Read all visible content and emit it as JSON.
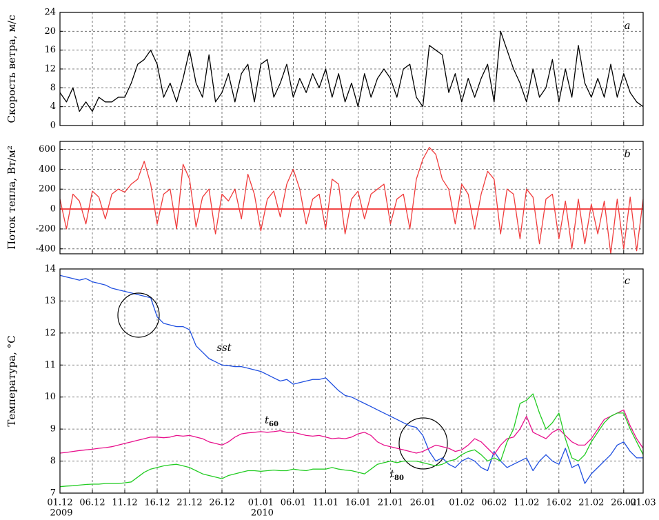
{
  "chart_data": [
    {
      "type": "line",
      "ylabel": "Скорость ветра, м/с",
      "annotation": "a",
      "grid": true,
      "xlim": [
        0,
        90
      ],
      "ylim": [
        0,
        24
      ],
      "yticks": [
        0,
        4,
        8,
        12,
        16,
        20,
        24
      ],
      "x": [
        0,
        1,
        2,
        3,
        4,
        5,
        6,
        7,
        8,
        9,
        10,
        11,
        12,
        13,
        14,
        15,
        16,
        17,
        18,
        19,
        20,
        21,
        22,
        23,
        24,
        25,
        26,
        27,
        28,
        29,
        30,
        31,
        32,
        33,
        34,
        35,
        36,
        37,
        38,
        39,
        40,
        41,
        42,
        43,
        44,
        45,
        46,
        47,
        48,
        49,
        50,
        51,
        52,
        53,
        54,
        55,
        56,
        57,
        58,
        59,
        60,
        61,
        62,
        63,
        64,
        65,
        66,
        67,
        68,
        69,
        70,
        71,
        72,
        73,
        74,
        75,
        76,
        77,
        78,
        79,
        80,
        81,
        82,
        83,
        84,
        85,
        86,
        87,
        88,
        89,
        90
      ],
      "series": [
        {
          "color": "#000000",
          "values": [
            7,
            5,
            8,
            3,
            5,
            3,
            6,
            5,
            5,
            6,
            6,
            9,
            13,
            14,
            16,
            13,
            6,
            9,
            5,
            10,
            16,
            9,
            6,
            15,
            5,
            7,
            11,
            5,
            11,
            13,
            5,
            13,
            14,
            6,
            9,
            13,
            6,
            10,
            7,
            11,
            8,
            12,
            6,
            11,
            5,
            9,
            4,
            11,
            6,
            10,
            12,
            10,
            6,
            12,
            13,
            6,
            4,
            17,
            16,
            15,
            7,
            11,
            5,
            10,
            6,
            10,
            13,
            5,
            20,
            16,
            12,
            9,
            5,
            12,
            6,
            8,
            14,
            5,
            12,
            6,
            17,
            9,
            6,
            10,
            6,
            13,
            6,
            11,
            7,
            5,
            4
          ]
        }
      ]
    },
    {
      "type": "line",
      "ylabel": "Поток тепла, Вт/м²",
      "annotation": "b",
      "grid": true,
      "tick_label_color": "#e8222a",
      "reference_line": 0,
      "xlim": [
        0,
        90
      ],
      "ylim": [
        -450,
        680
      ],
      "yticks": [
        -400,
        -200,
        0,
        200,
        400,
        600
      ],
      "x": [
        0,
        1,
        2,
        3,
        4,
        5,
        6,
        7,
        8,
        9,
        10,
        11,
        12,
        13,
        14,
        15,
        16,
        17,
        18,
        19,
        20,
        21,
        22,
        23,
        24,
        25,
        26,
        27,
        28,
        29,
        30,
        31,
        32,
        33,
        34,
        35,
        36,
        37,
        38,
        39,
        40,
        41,
        42,
        43,
        44,
        45,
        46,
        47,
        48,
        49,
        50,
        51,
        52,
        53,
        54,
        55,
        56,
        57,
        58,
        59,
        60,
        61,
        62,
        63,
        64,
        65,
        66,
        67,
        68,
        69,
        70,
        71,
        72,
        73,
        74,
        75,
        76,
        77,
        78,
        79,
        80,
        81,
        82,
        83,
        84,
        85,
        86,
        87,
        88,
        89,
        90
      ],
      "series": [
        {
          "color": "#f03c3c",
          "values": [
            100,
            -200,
            150,
            80,
            -150,
            180,
            120,
            -100,
            150,
            200,
            170,
            250,
            300,
            480,
            250,
            -150,
            150,
            200,
            -200,
            450,
            300,
            -180,
            120,
            200,
            -250,
            150,
            80,
            200,
            -100,
            350,
            150,
            -220,
            100,
            180,
            -80,
            250,
            400,
            200,
            -150,
            100,
            150,
            -200,
            300,
            250,
            -250,
            100,
            180,
            -100,
            150,
            200,
            250,
            -150,
            100,
            150,
            -200,
            300,
            500,
            620,
            550,
            300,
            200,
            -150,
            250,
            150,
            -200,
            150,
            380,
            300,
            -250,
            200,
            150,
            -300,
            200,
            120,
            -350,
            100,
            150,
            -300,
            80,
            -400,
            100,
            -350,
            50,
            -250,
            80,
            -450,
            100,
            -400,
            120,
            -420,
            100
          ]
        }
      ]
    },
    {
      "type": "line",
      "ylabel": "Температура, °С",
      "annotation": "c",
      "grid": true,
      "xlim": [
        0,
        90
      ],
      "ylim": [
        7,
        14
      ],
      "yticks": [
        7,
        8,
        9,
        10,
        11,
        12,
        13,
        14
      ],
      "xticks": [
        {
          "value": 0,
          "label": "01.12"
        },
        {
          "value": 5,
          "label": "06.12"
        },
        {
          "value": 10,
          "label": "11.12"
        },
        {
          "value": 15,
          "label": "16.12"
        },
        {
          "value": 20,
          "label": "21.12"
        },
        {
          "value": 25,
          "label": "26.12"
        },
        {
          "value": 31,
          "label": "01.01"
        },
        {
          "value": 36,
          "label": "06.01"
        },
        {
          "value": 41,
          "label": "11.01"
        },
        {
          "value": 46,
          "label": "16.01"
        },
        {
          "value": 51,
          "label": "21.01"
        },
        {
          "value": 56,
          "label": "26.01"
        },
        {
          "value": 62,
          "label": "01.02"
        },
        {
          "value": 67,
          "label": "06.02"
        },
        {
          "value": 72,
          "label": "11.02"
        },
        {
          "value": 77,
          "label": "16.02"
        },
        {
          "value": 82,
          "label": "21.02"
        },
        {
          "value": 87,
          "label": "26.02"
        },
        {
          "value": 90,
          "label": "01.03"
        }
      ],
      "x_year_labels": [
        {
          "value": 0,
          "label": "2009"
        },
        {
          "value": 31,
          "label": "2010"
        }
      ],
      "x": [
        0,
        1,
        2,
        3,
        4,
        5,
        6,
        7,
        8,
        9,
        10,
        11,
        12,
        13,
        14,
        15,
        16,
        17,
        18,
        19,
        20,
        21,
        22,
        23,
        24,
        25,
        26,
        27,
        28,
        29,
        30,
        31,
        32,
        33,
        34,
        35,
        36,
        37,
        38,
        39,
        40,
        41,
        42,
        43,
        44,
        45,
        46,
        47,
        48,
        49,
        50,
        51,
        52,
        53,
        54,
        55,
        56,
        57,
        58,
        59,
        60,
        61,
        62,
        63,
        64,
        65,
        66,
        67,
        68,
        69,
        70,
        71,
        72,
        73,
        74,
        75,
        76,
        77,
        78,
        79,
        80,
        81,
        82,
        83,
        84,
        85,
        86,
        87,
        88,
        89,
        90
      ],
      "series": [
        {
          "name": "sst",
          "color": "#1f4fe0",
          "values": [
            13.8,
            13.75,
            13.7,
            13.65,
            13.7,
            13.6,
            13.55,
            13.5,
            13.4,
            13.35,
            13.3,
            13.25,
            13.2,
            13.15,
            13.1,
            12.5,
            12.3,
            12.25,
            12.2,
            12.2,
            12.1,
            11.6,
            11.4,
            11.2,
            11.1,
            11.0,
            10.98,
            10.95,
            10.95,
            10.9,
            10.85,
            10.8,
            10.7,
            10.6,
            10.5,
            10.55,
            10.4,
            10.45,
            10.5,
            10.55,
            10.55,
            10.6,
            10.4,
            10.2,
            10.05,
            10.0,
            9.9,
            9.8,
            9.7,
            9.6,
            9.5,
            9.4,
            9.3,
            9.2,
            9.1,
            9.05,
            8.8,
            8.3,
            8.0,
            8.1,
            7.9,
            7.8,
            8.0,
            8.1,
            8.0,
            7.8,
            7.7,
            8.3,
            8.0,
            7.8,
            7.9,
            8.0,
            8.1,
            7.7,
            8.0,
            8.2,
            8.0,
            7.9,
            8.4,
            7.8,
            7.9,
            7.3,
            7.6,
            7.8,
            8.0,
            8.2,
            8.5,
            8.6,
            8.3,
            8.1,
            8.1
          ]
        },
        {
          "name": "t60",
          "color": "#e8108c",
          "values": [
            8.25,
            8.27,
            8.3,
            8.33,
            8.35,
            8.37,
            8.4,
            8.42,
            8.45,
            8.5,
            8.55,
            8.6,
            8.65,
            8.7,
            8.75,
            8.75,
            8.73,
            8.75,
            8.8,
            8.78,
            8.8,
            8.75,
            8.7,
            8.6,
            8.55,
            8.5,
            8.6,
            8.75,
            8.85,
            8.88,
            8.9,
            8.92,
            8.9,
            8.92,
            8.95,
            8.9,
            8.9,
            8.85,
            8.8,
            8.78,
            8.8,
            8.75,
            8.7,
            8.72,
            8.7,
            8.75,
            8.85,
            8.9,
            8.8,
            8.6,
            8.5,
            8.45,
            8.4,
            8.35,
            8.3,
            8.25,
            8.3,
            8.4,
            8.5,
            8.45,
            8.4,
            8.3,
            8.35,
            8.5,
            8.7,
            8.6,
            8.4,
            8.2,
            8.5,
            8.7,
            8.75,
            9.0,
            9.4,
            8.9,
            8.8,
            8.7,
            8.9,
            9.0,
            8.8,
            8.6,
            8.5,
            8.5,
            8.7,
            9.0,
            9.3,
            9.4,
            9.5,
            9.6,
            9.1,
            8.7,
            8.4
          ]
        },
        {
          "name": "t80",
          "color": "#22cc22",
          "values": [
            7.2,
            7.22,
            7.23,
            7.25,
            7.27,
            7.28,
            7.28,
            7.3,
            7.3,
            7.3,
            7.32,
            7.35,
            7.5,
            7.65,
            7.75,
            7.8,
            7.85,
            7.88,
            7.9,
            7.85,
            7.8,
            7.7,
            7.6,
            7.55,
            7.5,
            7.45,
            7.55,
            7.6,
            7.65,
            7.7,
            7.7,
            7.68,
            7.7,
            7.72,
            7.7,
            7.7,
            7.75,
            7.72,
            7.7,
            7.75,
            7.75,
            7.75,
            7.8,
            7.75,
            7.72,
            7.7,
            7.65,
            7.6,
            7.75,
            7.9,
            7.95,
            8.0,
            7.95,
            8.0,
            8.0,
            8.0,
            7.95,
            7.9,
            7.85,
            7.9,
            8.0,
            8.05,
            8.2,
            8.3,
            8.35,
            8.2,
            8.0,
            8.1,
            8.0,
            8.6,
            9.0,
            9.8,
            9.9,
            10.1,
            9.5,
            9.0,
            9.2,
            9.5,
            8.7,
            8.1,
            8.0,
            8.2,
            8.6,
            8.9,
            9.2,
            9.4,
            9.5,
            9.5,
            9.0,
            8.6,
            8.2
          ]
        }
      ]
    }
  ]
}
